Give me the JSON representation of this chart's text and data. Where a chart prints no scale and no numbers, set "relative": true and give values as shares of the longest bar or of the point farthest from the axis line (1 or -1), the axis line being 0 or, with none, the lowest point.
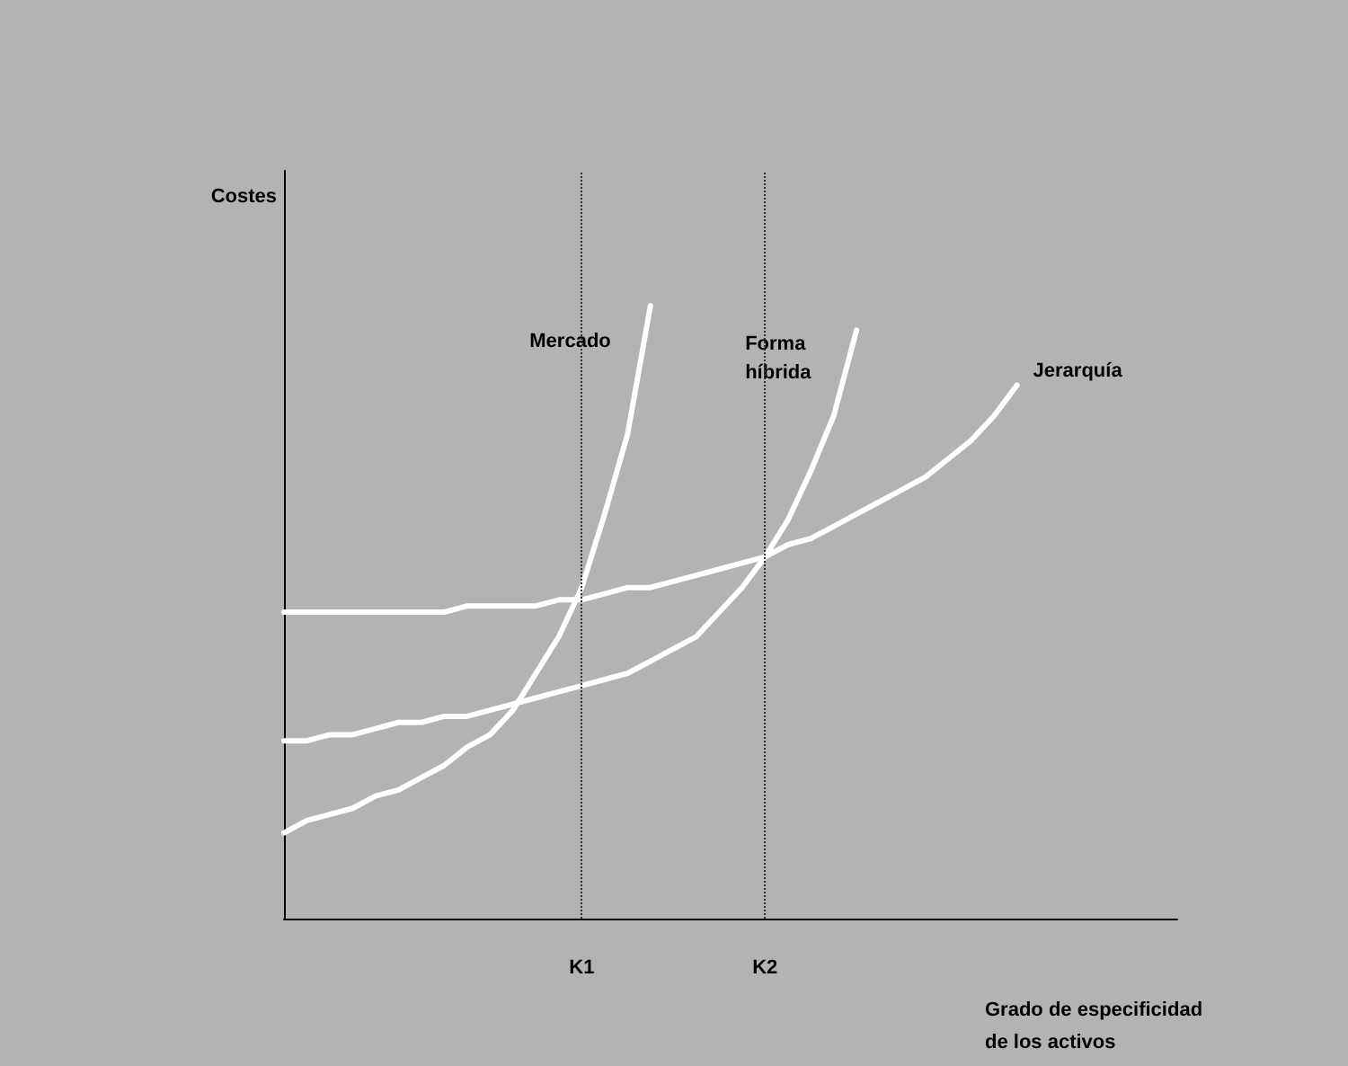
{
  "chart_data": {
    "type": "line",
    "relative": true,
    "ylabel": "Costes",
    "xlabel": "Grado de especificidad\nde los activos",
    "tick_labels": "x",
    "marker": "none",
    "line_style": "solid",
    "categories": [
      null,
      null,
      null,
      null,
      null,
      null,
      null,
      null,
      null,
      null,
      null,
      null,
      null,
      "K1",
      null,
      null,
      null,
      null,
      null,
      null,
      null,
      "K2",
      null,
      null,
      null,
      null,
      null,
      null,
      null,
      null,
      null,
      null,
      null,
      null,
      null,
      null,
      null,
      null,
      null,
      null
    ],
    "series": [
      {
        "name": "Mercado",
        "color": "#ffffff",
        "values": [
          0.14,
          0.16,
          0.17,
          0.18,
          0.2,
          0.21,
          0.23,
          0.25,
          0.28,
          0.3,
          0.34,
          0.4,
          0.46,
          0.54,
          0.66,
          0.79,
          1,
          null,
          null,
          null,
          null,
          null,
          null,
          null,
          null,
          null,
          null,
          null,
          null,
          null,
          null,
          null,
          null,
          null,
          null,
          null,
          null,
          null,
          null,
          null
        ]
      },
      {
        "name": "Forma\nhíbrida",
        "color": "#ffffff",
        "values": [
          0.29,
          0.29,
          0.3,
          0.3,
          0.31,
          0.32,
          0.32,
          0.33,
          0.33,
          0.34,
          0.35,
          0.36,
          0.37,
          0.38,
          0.39,
          0.4,
          0.42,
          0.44,
          0.46,
          0.5,
          0.54,
          0.59,
          0.65,
          0.73,
          0.82,
          0.96,
          null,
          null,
          null,
          null,
          null,
          null,
          null,
          null,
          null,
          null,
          null,
          null,
          null,
          null
        ]
      },
      {
        "name": "Jerarquía",
        "color": "#ffffff",
        "values": [
          0.5,
          0.5,
          0.5,
          0.5,
          0.5,
          0.5,
          0.5,
          0.5,
          0.51,
          0.51,
          0.51,
          0.51,
          0.52,
          0.52,
          0.53,
          0.54,
          0.54,
          0.55,
          0.56,
          0.57,
          0.58,
          0.59,
          0.61,
          0.62,
          0.64,
          0.66,
          0.68,
          0.7,
          0.72,
          0.75,
          0.78,
          0.82,
          0.87,
          null,
          null,
          null,
          null,
          null,
          null,
          null
        ]
      }
    ],
    "ref_lines": [
      {
        "axis": "x",
        "value": "K1",
        "color": "#333333",
        "line_style": "dotted"
      },
      {
        "axis": "x",
        "value": "K2",
        "color": "#333333",
        "line_style": "dotted"
      }
    ]
  }
}
